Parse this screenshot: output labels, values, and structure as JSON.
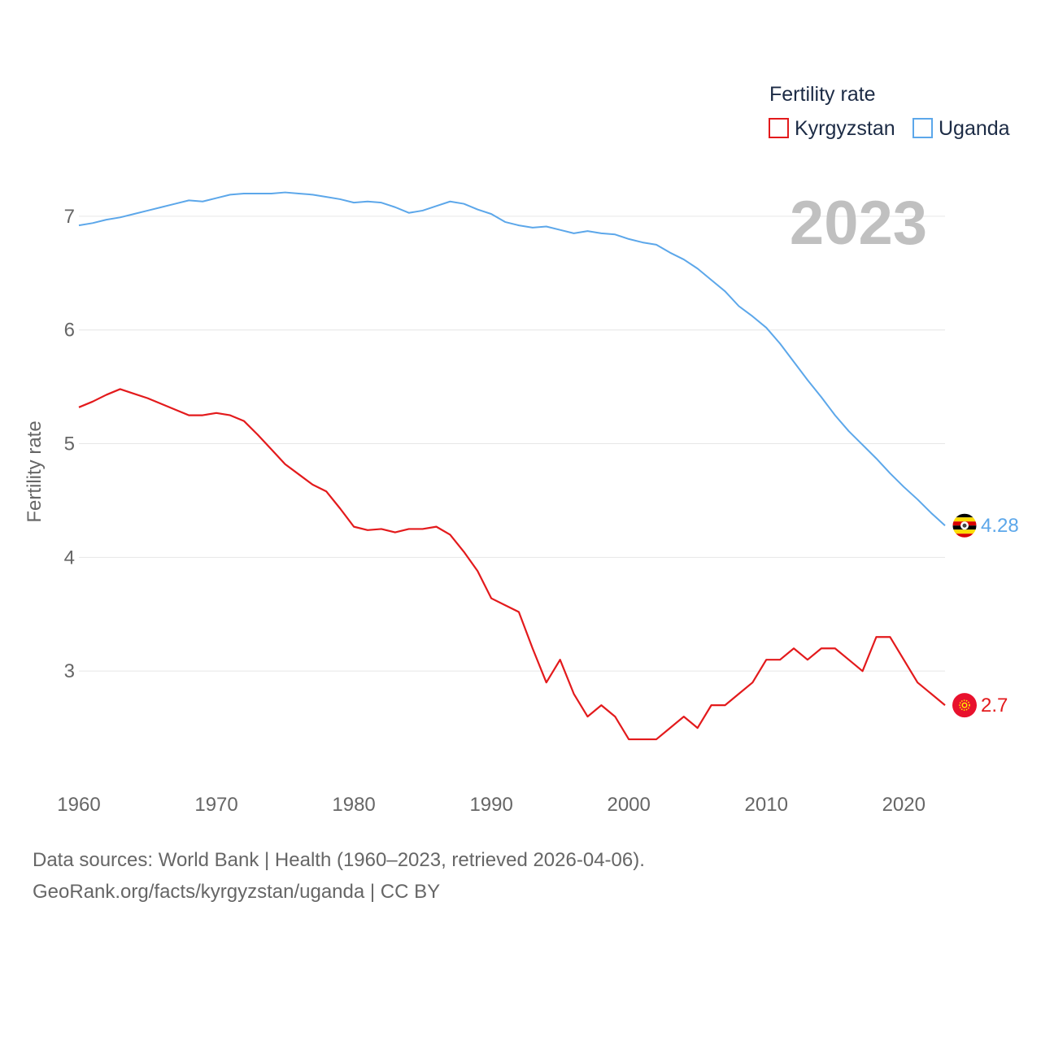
{
  "chart_data": {
    "type": "line",
    "title": "Fertility rate",
    "ylabel": "Fertility rate",
    "xlabel": "",
    "year_overlay": "2023",
    "x": [
      1960,
      1961,
      1962,
      1963,
      1964,
      1965,
      1966,
      1967,
      1968,
      1969,
      1970,
      1971,
      1972,
      1973,
      1974,
      1975,
      1976,
      1977,
      1978,
      1979,
      1980,
      1981,
      1982,
      1983,
      1984,
      1985,
      1986,
      1987,
      1988,
      1989,
      1990,
      1991,
      1992,
      1993,
      1994,
      1995,
      1996,
      1997,
      1998,
      1999,
      2000,
      2001,
      2002,
      2003,
      2004,
      2005,
      2006,
      2007,
      2008,
      2009,
      2010,
      2011,
      2012,
      2013,
      2014,
      2015,
      2016,
      2017,
      2018,
      2019,
      2020,
      2021,
      2022,
      2023
    ],
    "xticks": [
      1960,
      1970,
      1980,
      1990,
      2000,
      2010,
      2020
    ],
    "yticks": [
      3,
      4,
      5,
      6,
      7
    ],
    "xlim": [
      1960,
      2023
    ],
    "ylim": [
      2.0,
      7.4
    ],
    "grid": true,
    "legend_position": "top-right",
    "series": [
      {
        "name": "Kyrgyzstan",
        "color": "#e31a1c",
        "end_label": "2.7",
        "values": [
          5.32,
          5.37,
          5.43,
          5.48,
          5.44,
          5.4,
          5.35,
          5.3,
          5.25,
          5.25,
          5.27,
          5.25,
          5.2,
          5.08,
          4.95,
          4.82,
          4.73,
          4.64,
          4.58,
          4.43,
          4.27,
          4.24,
          4.25,
          4.22,
          4.25,
          4.25,
          4.27,
          4.2,
          4.05,
          3.88,
          3.64,
          3.58,
          3.52,
          3.2,
          2.9,
          3.1,
          2.8,
          2.6,
          2.7,
          2.6,
          2.4,
          2.4,
          2.4,
          2.5,
          2.6,
          2.5,
          2.7,
          2.7,
          2.8,
          2.9,
          3.1,
          3.1,
          3.2,
          3.1,
          3.2,
          3.2,
          3.1,
          3.0,
          3.3,
          3.3,
          3.1,
          2.9,
          2.8,
          2.7
        ]
      },
      {
        "name": "Uganda",
        "color": "#5ca7ea",
        "end_label": "4.28",
        "values": [
          6.92,
          6.94,
          6.97,
          6.99,
          7.02,
          7.05,
          7.08,
          7.11,
          7.14,
          7.13,
          7.16,
          7.19,
          7.2,
          7.2,
          7.2,
          7.21,
          7.2,
          7.19,
          7.17,
          7.15,
          7.12,
          7.13,
          7.12,
          7.08,
          7.03,
          7.05,
          7.09,
          7.13,
          7.11,
          7.06,
          7.02,
          6.95,
          6.92,
          6.9,
          6.91,
          6.88,
          6.85,
          6.87,
          6.85,
          6.84,
          6.8,
          6.77,
          6.75,
          6.68,
          6.62,
          6.54,
          6.44,
          6.34,
          6.21,
          6.12,
          6.02,
          5.88,
          5.72,
          5.56,
          5.41,
          5.25,
          5.11,
          4.99,
          4.87,
          4.74,
          4.62,
          4.51,
          4.39,
          4.28
        ]
      }
    ]
  },
  "legend": {
    "title": "Fertility rate",
    "items": [
      {
        "label": "Kyrgyzstan",
        "color": "#e31a1c"
      },
      {
        "label": "Uganda",
        "color": "#5ca7ea"
      }
    ]
  },
  "flags": [
    {
      "icon": "uganda-flag-icon",
      "series": "Uganda"
    },
    {
      "icon": "kyrgyzstan-flag-icon",
      "series": "Kyrgyzstan"
    }
  ],
  "footer": {
    "line1": "Data sources: World Bank | Health (1960–2023, retrieved 2026-04-06).",
    "line2": "GeoRank.org/facts/kyrgyzstan/uganda | CC BY"
  }
}
